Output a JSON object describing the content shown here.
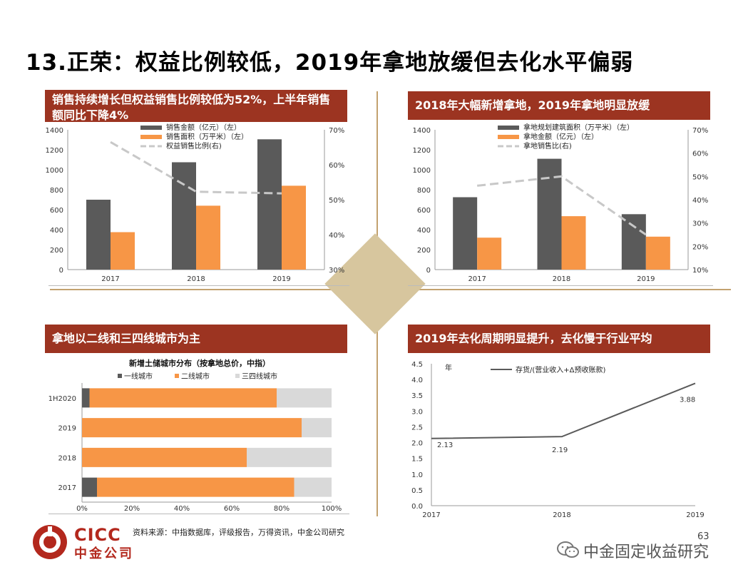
{
  "page": {
    "title": "13.正荣：权益比例较低，2019年拿地放缓但去化水平偏弱",
    "source": "资料来源：中指数据库，评级报告，万得资讯，中金公司研究",
    "logo_en": "CICC",
    "logo_cn": "中金公司",
    "page_number": "63",
    "wechat_account": "中金固定收益研究"
  },
  "panels": {
    "tl": "销售持续增长但权益销售比例较低为52%，上半年销售额同比下降4%",
    "tr": "2018年大幅新增拿地，2019年拿地明显放缓",
    "bl": "拿地以二线和三四线城市为主",
    "br": "2019年去化周期明显提升，去化慢于行业平均"
  },
  "colors": {
    "dark": "#5a5a5a",
    "orange": "#f79646",
    "dashed": "#c8c8c8",
    "lightgray": "#d9d9d9",
    "brand_red": "#9c3421"
  },
  "chart_data": [
    {
      "id": "sales",
      "type": "bar",
      "categories": [
        "2017",
        "2018",
        "2019"
      ],
      "series": [
        {
          "name": "销售金额（亿元）（左）",
          "kind": "bar",
          "axis": "left",
          "color": "#5a5a5a",
          "values": [
            700,
            1075,
            1305
          ]
        },
        {
          "name": "销售面积（万平米）（左）",
          "kind": "bar",
          "axis": "left",
          "color": "#f79646",
          "values": [
            375,
            640,
            840
          ]
        },
        {
          "name": "权益销售比例(右)",
          "kind": "dashed-line",
          "axis": "right",
          "color": "#c8c8c8",
          "values": [
            66.5,
            52.3,
            51.8
          ]
        }
      ],
      "left_axis": {
        "min": 0,
        "max": 1400,
        "ticks": [
          "0",
          "200",
          "400",
          "600",
          "800",
          "1000",
          "1200",
          "1400"
        ]
      },
      "right_axis": {
        "min": 30,
        "max": 70,
        "ticks": [
          "30%",
          "40%",
          "50%",
          "60%",
          "70%"
        ]
      }
    },
    {
      "id": "land",
      "type": "bar",
      "categories": [
        "2017",
        "2018",
        "2019"
      ],
      "series": [
        {
          "name": "拿地规划建筑面积（万平米）（左）",
          "kind": "bar",
          "axis": "left",
          "color": "#5a5a5a",
          "values": [
            725,
            1110,
            555
          ]
        },
        {
          "name": "拿地金额（亿元）（左）",
          "kind": "bar",
          "axis": "left",
          "color": "#f79646",
          "values": [
            320,
            535,
            330
          ]
        },
        {
          "name": "拿地销售比(右)",
          "kind": "dashed-line",
          "axis": "right",
          "color": "#c8c8c8",
          "values": [
            46,
            50,
            25
          ]
        }
      ],
      "left_axis": {
        "min": 0,
        "max": 1400,
        "ticks": [
          "0",
          "200",
          "400",
          "600",
          "800",
          "1000",
          "1200",
          "1400"
        ]
      },
      "right_axis": {
        "min": 10,
        "max": 70,
        "ticks": [
          "10%",
          "20%",
          "30%",
          "40%",
          "50%",
          "60%",
          "70%"
        ]
      }
    },
    {
      "id": "cities",
      "type": "bar",
      "orientation": "horizontal-stacked-100",
      "title": "新增土储城市分布（按拿地总价，中指）",
      "categories": [
        "1H2020",
        "2019",
        "2018",
        "2017"
      ],
      "series": [
        {
          "name": "一线城市",
          "color": "#5a5a5a",
          "values": [
            3,
            0,
            0,
            6
          ]
        },
        {
          "name": "二线城市",
          "color": "#f79646",
          "values": [
            75,
            88,
            66,
            79
          ]
        },
        {
          "name": "三四线城市",
          "color": "#d9d9d9",
          "values": [
            22,
            12,
            34,
            15
          ]
        }
      ],
      "x_axis": {
        "min": 0,
        "max": 100,
        "ticks": [
          "0%",
          "20%",
          "40%",
          "60%",
          "80%",
          "100%"
        ]
      }
    },
    {
      "id": "destock",
      "type": "line",
      "x": [
        "2017",
        "2018",
        "2019"
      ],
      "series": [
        {
          "name": "存货/(营业收入+Δ预收账款)",
          "color": "#5a5a5a",
          "values": [
            2.13,
            2.19,
            3.88
          ]
        }
      ],
      "data_labels": [
        "2.13",
        "2.19",
        "3.88"
      ],
      "ylabel": "年",
      "y_axis": {
        "min": 0,
        "max": 4.5,
        "ticks": [
          "0.0",
          "0.5",
          "1.0",
          "1.5",
          "2.0",
          "2.5",
          "3.0",
          "3.5",
          "4.0",
          "4.5"
        ]
      }
    }
  ]
}
